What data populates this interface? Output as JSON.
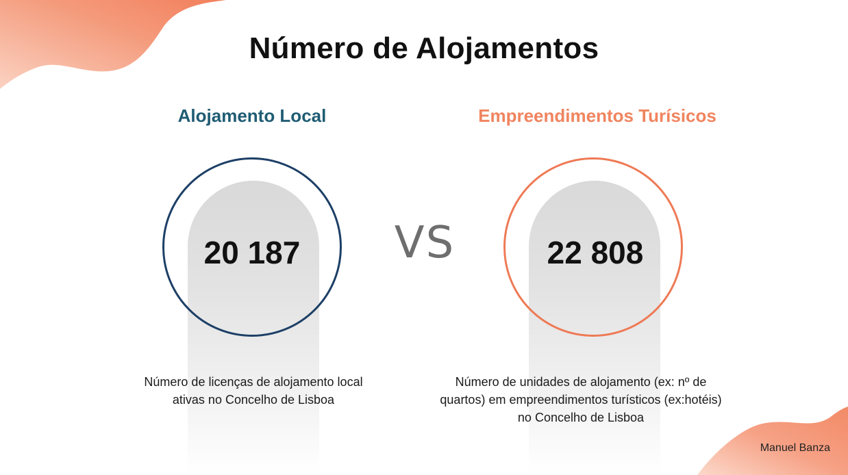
{
  "title": "Número de Alojamentos",
  "left": {
    "heading": "Alojamento Local",
    "value": "20 187",
    "description_line1": "Número de licenças de alojamento local",
    "description_line2": "ativas no Concelho de Lisboa"
  },
  "vs": "VS",
  "right": {
    "heading": "Empreendimentos Turísicos",
    "value": "22 808",
    "description_line1": "Número de unidades de alojamento (ex: nº de",
    "description_line2": "quartos) em empreendimentos turísticos (ex:hotéis)",
    "description_line3": "no Concelho de Lisboa"
  },
  "author": "Manuel Banza",
  "colors": {
    "left_accent": "#1f5c73",
    "left_ring": "#1c3f66",
    "right_accent": "#f0845f",
    "right_ring": "#ee7a55",
    "blob": "#f4916e"
  }
}
